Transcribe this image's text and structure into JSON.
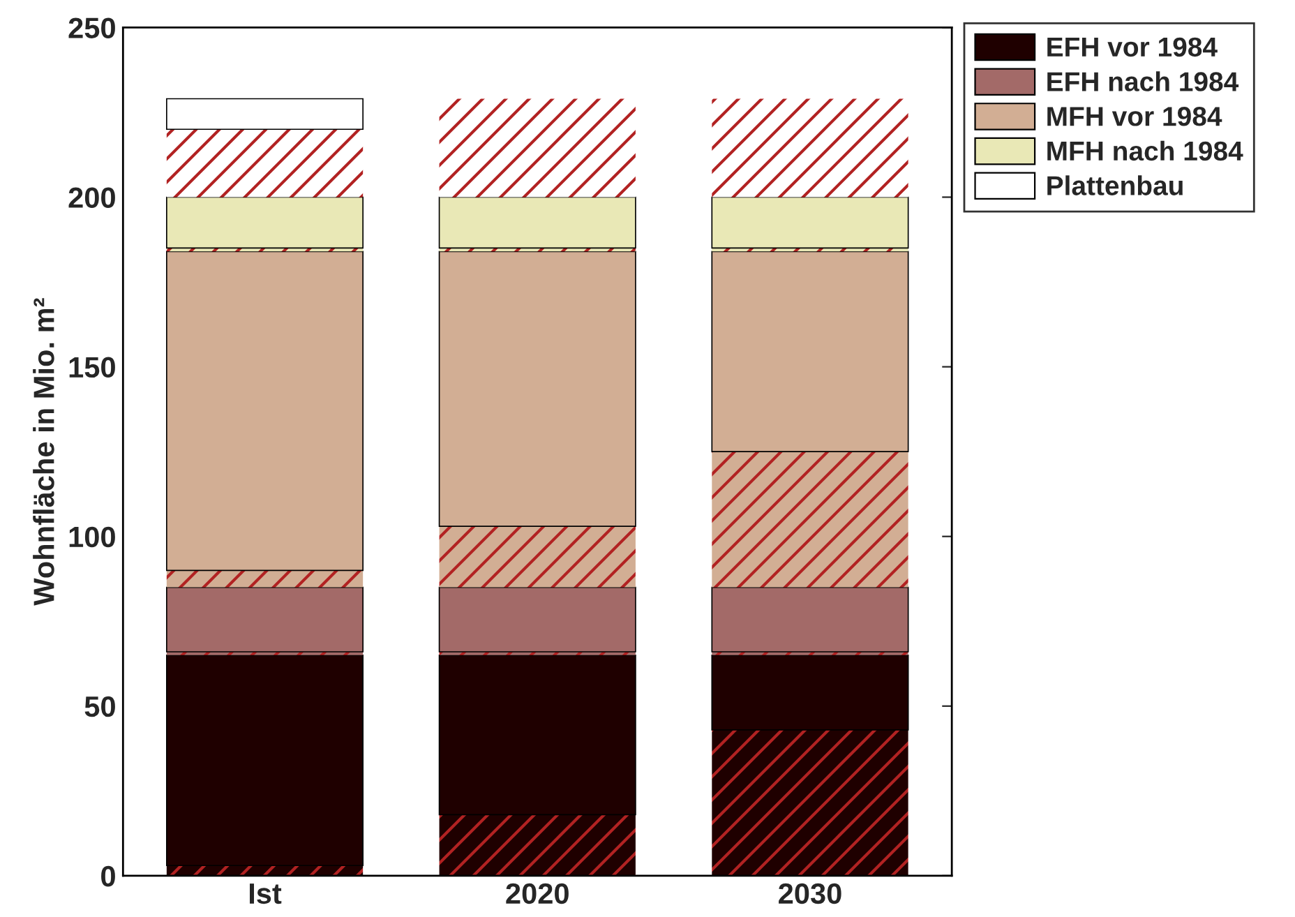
{
  "chart_data": {
    "type": "bar",
    "stacked": true,
    "ylabel": "Wohnfläche in Mio. m²",
    "categories": [
      "Ist",
      "2020",
      "2030"
    ],
    "series": [
      {
        "color": "#1f0000",
        "values": [
          3,
          18,
          43
        ]
      },
      {
        "name": "EFH vor 1984",
        "color": "#1f0000",
        "values": [
          62,
          47,
          22
        ]
      },
      {
        "color": "#a36a68",
        "values": [
          1,
          1,
          1
        ]
      },
      {
        "name": "EFH nach 1984",
        "color": "#a36a68",
        "values": [
          19,
          19,
          19
        ]
      },
      {
        "color": "#d2ae94",
        "values": [
          5,
          18,
          40
        ]
      },
      {
        "name": "MFH vor 1984",
        "color": "#d2ae94",
        "values": [
          94,
          81,
          59
        ]
      },
      {
        "color": "#e9e8b6",
        "values": [
          1,
          1,
          1
        ]
      },
      {
        "name": "MFH nach 1984",
        "color": "#e9e8b6",
        "values": [
          15,
          15,
          15
        ]
      },
      {
        "color": "#ffffff",
        "values": [
          20,
          29,
          29
        ]
      },
      {
        "name": "Plattenbau",
        "color": "#ffffff",
        "values": [
          9,
          null,
          null
        ]
      }
    ],
    "ylim": [
      0,
      250
    ],
    "yticks": [
      0,
      50,
      100,
      150,
      200,
      250
    ],
    "grid": false,
    "legend": "top right"
  }
}
